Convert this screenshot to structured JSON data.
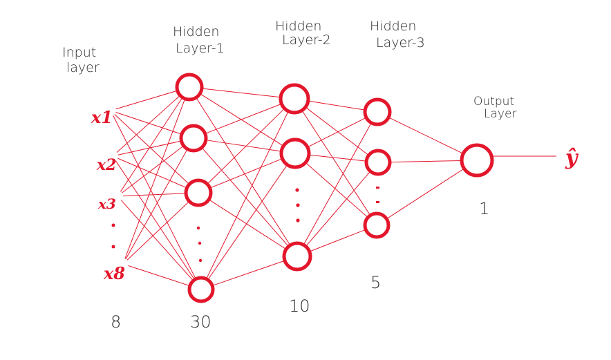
{
  "layers": [
    {
      "id": "input",
      "title_lines": [
        "Input",
        "layer"
      ],
      "count": "8"
    },
    {
      "id": "hidden1",
      "title_lines": [
        "Hidden",
        "Layer-1"
      ],
      "count": "30"
    },
    {
      "id": "hidden2",
      "title_lines": [
        "Hidden",
        "Layer-2"
      ],
      "count": "10"
    },
    {
      "id": "hidden3",
      "title_lines": [
        "Hidden",
        "Layer-3"
      ],
      "count": "5"
    },
    {
      "id": "output",
      "title_lines": [
        "Output",
        "Layer"
      ],
      "count": "1"
    }
  ],
  "inputs": [
    "x1",
    "x2",
    "x3",
    "x8"
  ],
  "output_symbol": "ŷ",
  "colors": {
    "accent": "#e3162b",
    "text": "#2a2a2a"
  }
}
